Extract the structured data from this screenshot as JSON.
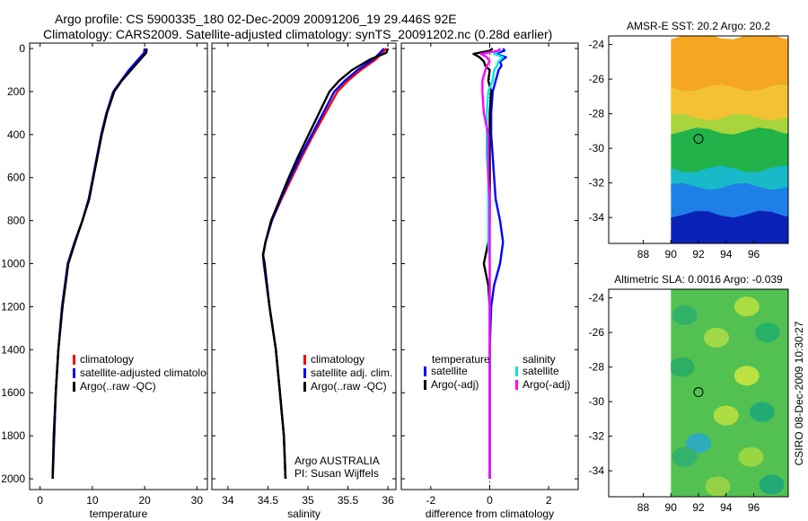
{
  "header": {
    "line1": "Argo profile: CS 5900335_180 02-Dec-2009 20091206_19 29.446S 92E",
    "line2": "Climatology: CARS2009. Satellite-adjusted climatology: synTS_20091202.nc (0.28d earlier)"
  },
  "side_label": "CSIRO 08-Dec-2009 10:30:27",
  "colors": {
    "red": "#ff0000",
    "blue": "#0000ff",
    "black": "#000000",
    "cyan": "#00e5e5",
    "magenta": "#ff00ff"
  },
  "chart_data": [
    {
      "type": "line",
      "name": "temperature",
      "xlabel": "temperature",
      "ylabel": "",
      "xlim": [
        -2,
        32
      ],
      "ylim": [
        2050,
        0
      ],
      "xticks": [
        0,
        10,
        20,
        30
      ],
      "yticks": [
        0,
        200,
        400,
        600,
        800,
        1000,
        1200,
        1400,
        1600,
        1800,
        2000
      ],
      "depth": [
        0,
        20,
        50,
        100,
        150,
        200,
        300,
        400,
        500,
        600,
        700,
        800,
        900,
        1000,
        1200,
        1400,
        1600,
        1800,
        2000
      ],
      "series": [
        {
          "name": "climatology",
          "color": "red",
          "values": [
            20.3,
            20.1,
            19.0,
            17.2,
            15.6,
            14.1,
            12.7,
            11.7,
            10.9,
            10.1,
            9.3,
            8.1,
            6.6,
            5.3,
            4.2,
            3.5,
            3.0,
            2.7,
            2.4
          ]
        },
        {
          "name": "satellite-adjusted climatology",
          "color": "blue",
          "values": [
            20.0,
            19.9,
            18.8,
            17.0,
            15.5,
            14.0,
            12.7,
            11.7,
            10.9,
            10.1,
            9.3,
            8.1,
            6.6,
            5.3,
            4.2,
            3.5,
            3.0,
            2.7,
            2.4
          ]
        },
        {
          "name": "Argo(..raw -QC)",
          "color": "black",
          "values": [
            20.4,
            20.3,
            19.2,
            17.4,
            15.6,
            14.2,
            12.8,
            11.8,
            11.0,
            10.2,
            9.4,
            8.1,
            6.7,
            5.4,
            4.3,
            3.5,
            3.0,
            2.6,
            2.4
          ]
        }
      ],
      "legend": [
        "climatology",
        "satellite-adjusted climatolog",
        "Argo(..raw -QC)"
      ]
    },
    {
      "type": "line",
      "name": "salinity",
      "xlabel": "salinity",
      "xlim": [
        33.8,
        36.1
      ],
      "ylim": [
        2050,
        0
      ],
      "xticks": [
        34,
        34.5,
        35,
        35.5,
        36
      ],
      "xtick_labels": [
        "34",
        "34.5",
        "35",
        "35.5",
        "36"
      ],
      "depth": [
        0,
        20,
        50,
        100,
        150,
        200,
        300,
        400,
        500,
        600,
        700,
        800,
        900,
        960,
        1000,
        1200,
        1400,
        1600,
        1800,
        2000
      ],
      "series": [
        {
          "name": "climatology",
          "color": "red",
          "values": [
            35.98,
            35.93,
            35.85,
            35.66,
            35.5,
            35.37,
            35.22,
            35.07,
            34.93,
            34.8,
            34.67,
            34.55,
            34.47,
            34.44,
            34.45,
            34.52,
            34.6,
            34.65,
            34.7,
            34.72
          ]
        },
        {
          "name": "satellite adj. clim.",
          "color": "blue",
          "values": [
            35.95,
            35.9,
            35.82,
            35.62,
            35.46,
            35.33,
            35.19,
            35.05,
            34.91,
            34.78,
            34.66,
            34.55,
            34.47,
            34.44,
            34.45,
            34.52,
            34.6,
            34.65,
            34.7,
            34.72
          ]
        },
        {
          "name": "Argo(..raw -QC)",
          "color": "black",
          "values": [
            36.0,
            35.98,
            35.78,
            35.55,
            35.39,
            35.27,
            35.14,
            35.01,
            34.88,
            34.76,
            34.65,
            34.54,
            34.47,
            34.44,
            34.46,
            34.52,
            34.6,
            34.65,
            34.7,
            34.72
          ]
        }
      ],
      "legend": [
        "climatology",
        "satellite adj. clim.",
        "Argo(..raw -QC)"
      ],
      "annotation": [
        "Argo AUSTRALIA",
        "PI: Susan Wijffels"
      ]
    },
    {
      "type": "line",
      "name": "difference from climatology",
      "xlabel": "difference from climatology",
      "xlim": [
        -3,
        3
      ],
      "ylim": [
        2050,
        0
      ],
      "xticks": [
        -2,
        0,
        2
      ],
      "depth": [
        0,
        10,
        25,
        40,
        60,
        80,
        100,
        150,
        200,
        300,
        400,
        500,
        600,
        700,
        800,
        900,
        1000,
        1100,
        1200,
        1400,
        1600,
        1800,
        2000
      ],
      "series": [
        {
          "name": "temperature satellite",
          "color": "blue",
          "values": [
            0.45,
            0.5,
            0.2,
            0.55,
            0.35,
            0.4,
            0.3,
            0.2,
            0.1,
            0.05,
            0.05,
            0.1,
            0.15,
            0.2,
            0.35,
            0.45,
            0.35,
            0.15,
            0.05,
            0.0,
            0.0,
            0.0,
            0.0
          ]
        },
        {
          "name": "temperature Argo(-adj)",
          "color": "black",
          "values": [
            0.1,
            0.0,
            -0.55,
            -0.35,
            -0.2,
            -0.15,
            0.0,
            -0.05,
            0.05,
            0.0,
            0.0,
            0.0,
            0.0,
            0.0,
            0.0,
            -0.05,
            -0.2,
            -0.05,
            0.0,
            0.0,
            0.0,
            0.0,
            0.0
          ]
        },
        {
          "name": "salinity satellite",
          "color": "cyan",
          "values": [
            0.3,
            0.35,
            0.15,
            0.45,
            0.3,
            0.25,
            0.15,
            0.1,
            -0.05,
            -0.1,
            -0.1,
            -0.1,
            -0.05,
            -0.05,
            -0.05,
            -0.05,
            0.0,
            0.0,
            0.0,
            0.0,
            0.0,
            0.0,
            0.0
          ]
        },
        {
          "name": "salinity Argo(-adj)",
          "color": "magenta",
          "values": [
            0.35,
            0.3,
            -0.3,
            -0.1,
            0.0,
            -0.1,
            -0.15,
            -0.25,
            -0.25,
            -0.2,
            -0.05,
            -0.05,
            -0.05,
            0.0,
            0.0,
            0.0,
            0.0,
            0.0,
            0.0,
            0.0,
            0.0,
            0.0,
            0.0
          ]
        }
      ],
      "legend_titles": [
        "temperature",
        "salinity"
      ],
      "legend": [
        "satellite",
        "Argo(-adj)",
        "satellite",
        "Argo(-adj)"
      ]
    },
    {
      "type": "heatmap",
      "name": "sst_map",
      "title": "AMSR-E SST: 20.2 Argo: 20.2",
      "xlim": [
        85.5,
        98.5
      ],
      "ylim": [
        -35.5,
        -23.5
      ],
      "xticks": [
        88,
        90,
        92,
        94,
        96
      ],
      "yticks": [
        -24,
        -26,
        -28,
        -30,
        -32,
        -34
      ],
      "data_xmin": 90,
      "marker": {
        "lon": 92.0,
        "lat": -29.45
      },
      "bands": [
        {
          "lat": [
            -23.5,
            -26.5
          ],
          "color": "#f5a623"
        },
        {
          "lat": [
            -26.5,
            -28.2
          ],
          "color": "#f2c232"
        },
        {
          "lat": [
            -28.2,
            -29.0
          ],
          "color": "#a8d43c"
        },
        {
          "lat": [
            -29.0,
            -31.2
          ],
          "color": "#22b24a"
        },
        {
          "lat": [
            -31.2,
            -32.2
          ],
          "color": "#18b9c8"
        },
        {
          "lat": [
            -32.2,
            -33.8
          ],
          "color": "#1f7fe8"
        },
        {
          "lat": [
            -33.8,
            -35.5
          ],
          "color": "#0b22b8"
        }
      ]
    },
    {
      "type": "heatmap",
      "name": "sla_map",
      "title": "Altimetric SLA: 0.0016 Argo: -0.039",
      "xlim": [
        85.5,
        98.5
      ],
      "ylim": [
        -35.5,
        -23.5
      ],
      "xticks": [
        88,
        90,
        92,
        94,
        96
      ],
      "yticks": [
        -24,
        -26,
        -28,
        -30,
        -32,
        -34
      ],
      "data_xmin": 90,
      "marker": {
        "lon": 92.0,
        "lat": -29.45
      },
      "background": "#52c152",
      "blobs": [
        {
          "lon": 95.5,
          "lat": -24.5,
          "color": "#b4e040"
        },
        {
          "lon": 93.3,
          "lat": -26.3,
          "color": "#a8dc46"
        },
        {
          "lon": 97.0,
          "lat": -26.0,
          "color": "#22b06a"
        },
        {
          "lon": 91.0,
          "lat": -25.0,
          "color": "#2cb06a"
        },
        {
          "lon": 95.5,
          "lat": -28.5,
          "color": "#c8e640"
        },
        {
          "lon": 90.8,
          "lat": -28.0,
          "color": "#28ad66"
        },
        {
          "lon": 94.0,
          "lat": -30.8,
          "color": "#b8e040"
        },
        {
          "lon": 96.6,
          "lat": -30.6,
          "color": "#1ea97a"
        },
        {
          "lon": 92.0,
          "lat": -32.4,
          "color": "#2aa8c8"
        },
        {
          "lon": 91.0,
          "lat": -33.2,
          "color": "#30b070"
        },
        {
          "lon": 95.8,
          "lat": -33.2,
          "color": "#a0d840"
        },
        {
          "lon": 97.3,
          "lat": -34.8,
          "color": "#1ea67a"
        },
        {
          "lon": 93.4,
          "lat": -34.9,
          "color": "#9ad444"
        }
      ]
    }
  ]
}
